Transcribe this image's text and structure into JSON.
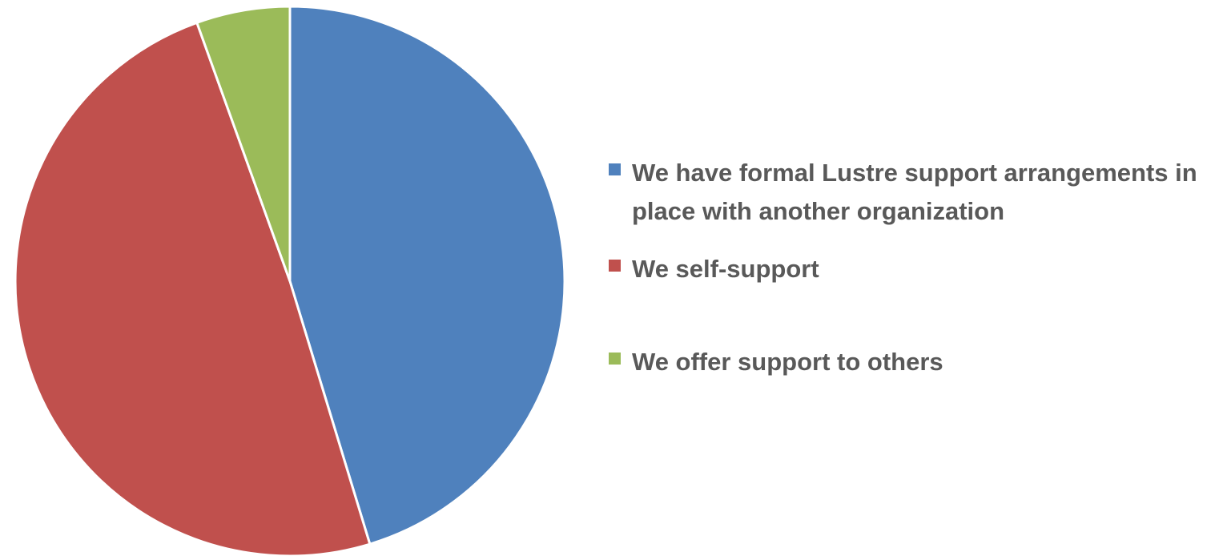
{
  "chart_data": {
    "type": "pie",
    "title": "",
    "categories": [
      "We have formal Lustre support arrangements in place with another organization",
      "We self-support",
      "We offer support to others"
    ],
    "values": [
      45.3,
      49.2,
      5.5
    ],
    "colors": [
      "#4F81BD",
      "#C0504D",
      "#9BBB59"
    ],
    "start_angle": "12 o'clock",
    "direction": "clockwise",
    "legend": {
      "position": "right",
      "entries": [
        "We have formal Lustre support arrangements in place with another organization",
        "We self-support",
        "We offer support to others"
      ]
    }
  }
}
